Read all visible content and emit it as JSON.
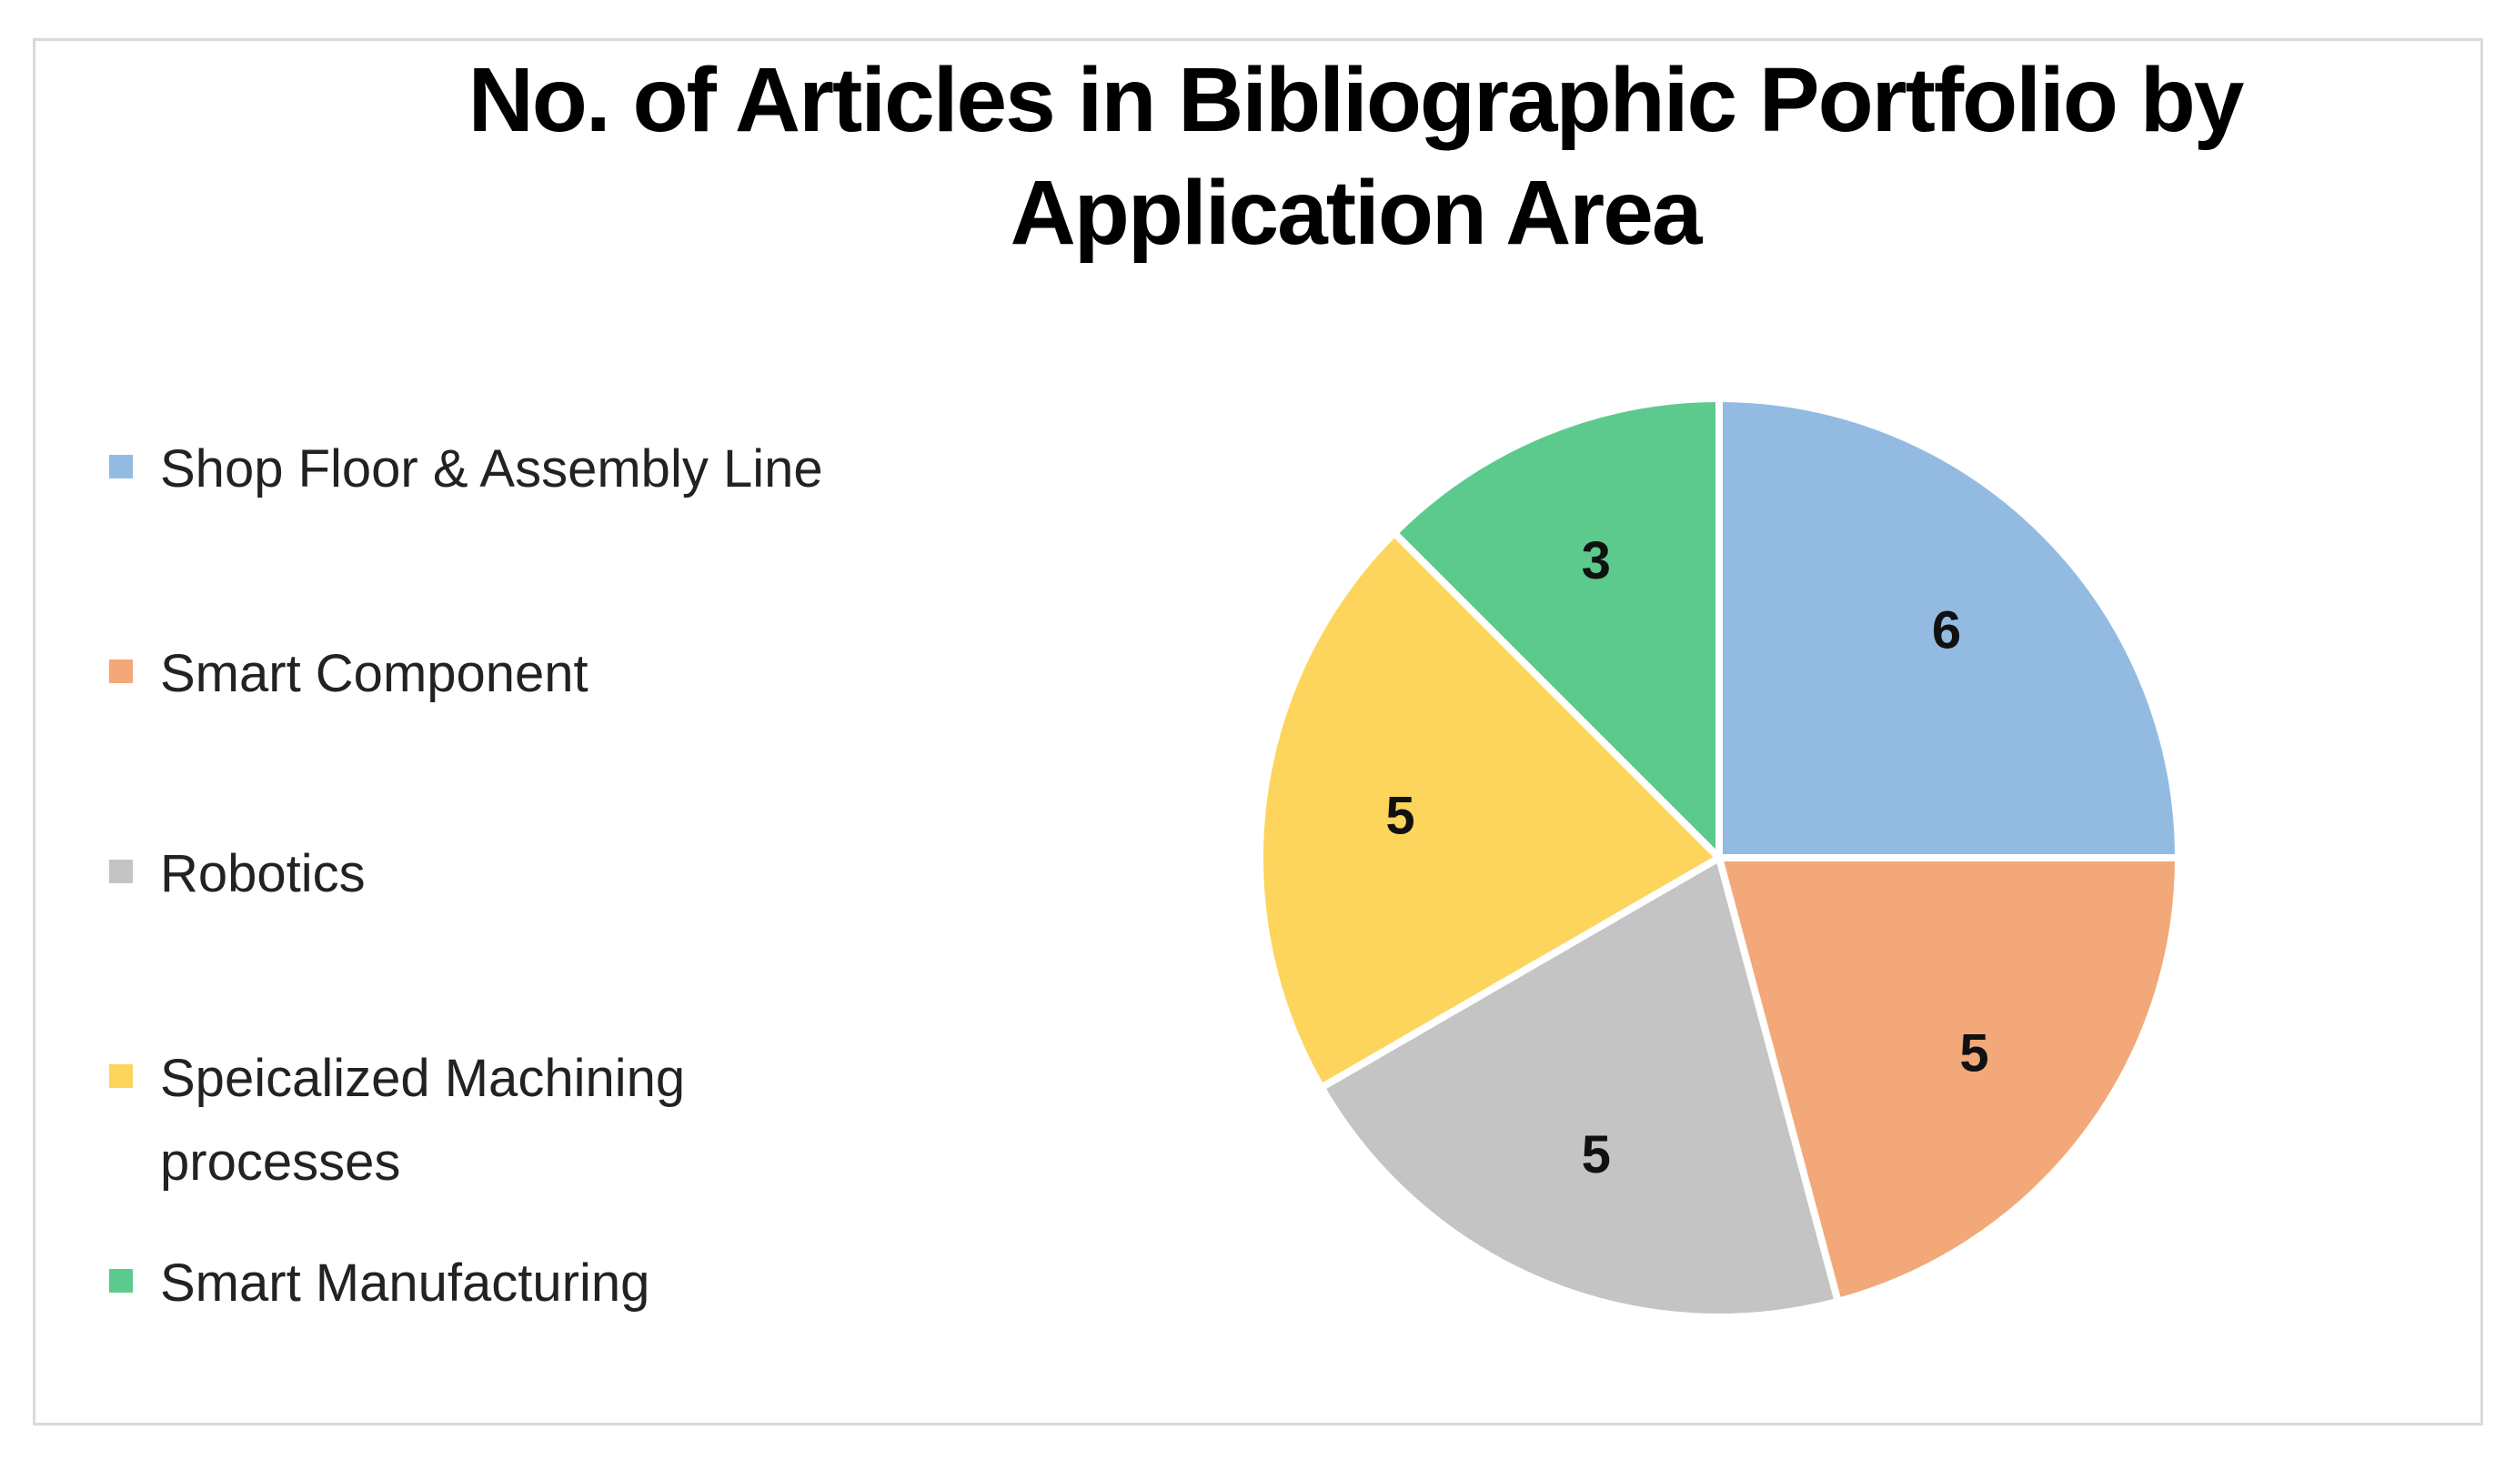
{
  "chart_data": {
    "type": "pie",
    "title": "No. of Articles in Bibliographic Portfolio by Application Area",
    "categories": [
      "Shop Floor & Assembly Line",
      "Smart Component",
      "Robotics",
      "Speicalized Machining processes",
      "Smart Manufacturing"
    ],
    "values": [
      6,
      5,
      5,
      5,
      3
    ],
    "colors": [
      "#93bbe2",
      "#f2a878",
      "#c4c4c4",
      "#fdd45c",
      "#5cca8c"
    ],
    "legend_position": "left",
    "data_labels": [
      "6",
      "5",
      "5",
      "5",
      "3"
    ]
  }
}
